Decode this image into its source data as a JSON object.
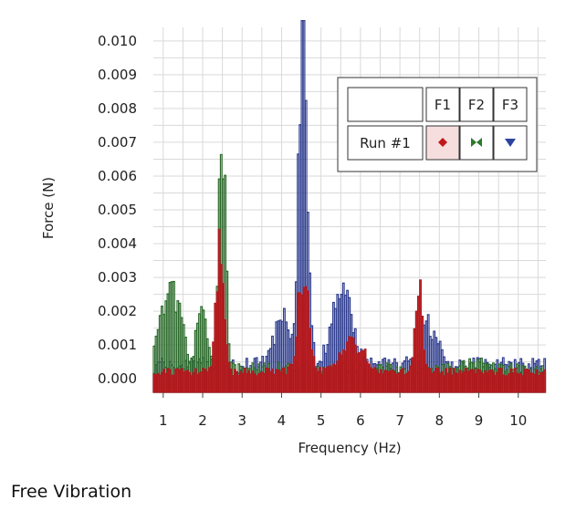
{
  "caption": "Free Vibration",
  "chart_data": {
    "type": "bar",
    "style": "outlined histogram (frequency spectrum)",
    "xlabel": "Frequency (Hz)",
    "ylabel": "Force (N)",
    "xlim": [
      0.75,
      10.7
    ],
    "ylim": [
      -0.0004,
      0.0104
    ],
    "grid": true,
    "x_ticks": [
      "1",
      "2",
      "3",
      "4",
      "5",
      "6",
      "7",
      "8",
      "9",
      "10"
    ],
    "y_ticks": [
      "0.000",
      "0.001",
      "0.002",
      "0.003",
      "0.004",
      "0.005",
      "0.006",
      "0.007",
      "0.008",
      "0.009",
      "0.010"
    ],
    "bin_width_hz": 0.05,
    "series": [
      {
        "name": "F3",
        "color": "#2e3d8f",
        "fill": "none",
        "peaks": [
          [
            4.55,
            0.0105,
            0.25
          ],
          [
            4.0,
            0.0015,
            0.4
          ],
          [
            5.55,
            0.0022,
            0.6
          ],
          [
            7.75,
            0.0012,
            0.45
          ]
        ],
        "baseline": 0.0004
      },
      {
        "name": "F2",
        "color": "#2a6a2a",
        "fill": "none",
        "peaks": [
          [
            2.5,
            0.0069,
            0.2
          ],
          [
            1.2,
            0.0023,
            0.6
          ],
          [
            2.0,
            0.0018,
            0.3
          ],
          [
            8.9,
            0.0002,
            0.8
          ]
        ],
        "baseline": 0.0003
      },
      {
        "name": "F1",
        "color": "#b0181c",
        "fill": "#c0181c",
        "peaks": [
          [
            2.45,
            0.0039,
            0.22
          ],
          [
            4.55,
            0.003,
            0.3
          ],
          [
            7.5,
            0.0024,
            0.22
          ],
          [
            5.8,
            0.0009,
            0.7
          ]
        ],
        "baseline": 0.0002
      }
    ]
  },
  "legend": {
    "row_label": "Run #1",
    "columns": [
      {
        "label": "F1",
        "marker": "diamond",
        "color": "#c0181c",
        "selected": true
      },
      {
        "label": "F2",
        "marker": "bowtie",
        "color": "#2a7a2a",
        "selected": false
      },
      {
        "label": "F3",
        "marker": "triangle-down",
        "color": "#2c43a0",
        "selected": false
      }
    ]
  }
}
